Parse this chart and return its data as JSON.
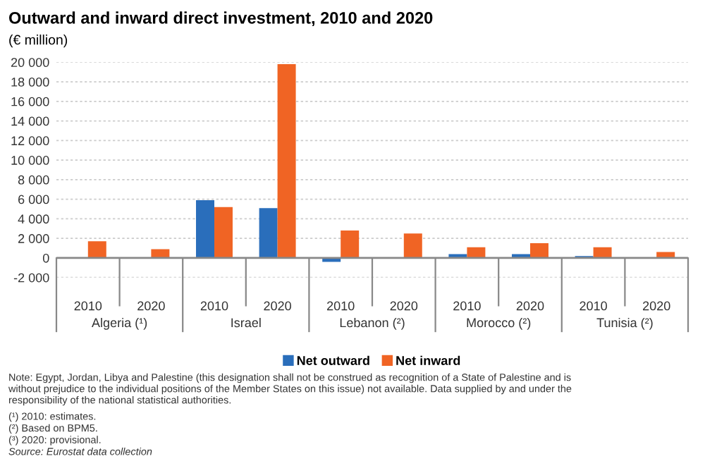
{
  "chart_data": {
    "type": "bar",
    "title": "Outward and inward direct investment, 2010 and 2020",
    "subtitle": "(€ million)",
    "categories": [
      "2010",
      "2020",
      "2010",
      "2020",
      "2010",
      "2020",
      "2010",
      "2020",
      "2010",
      "2020"
    ],
    "series": [
      {
        "name": "Net outward",
        "color": "#2a6ebb",
        "values": [
          50,
          50,
          5900,
          5100,
          -400,
          null,
          400,
          400,
          200,
          50
        ]
      },
      {
        "name": "Net inward",
        "color": "#f06424",
        "values": [
          1700,
          900,
          5200,
          19800,
          2800,
          2500,
          1100,
          1500,
          1100,
          600
        ]
      }
    ],
    "ylim": [
      -2000,
      20000
    ],
    "yticks": [
      {
        "value": -2000,
        "label": "-2 000"
      },
      0,
      {
        "value": 2000,
        "label": "2 000"
      },
      {
        "value": 4000,
        "label": "4 000"
      },
      {
        "value": 6000,
        "label": "6 000"
      },
      {
        "value": 8000,
        "label": "8 000"
      },
      {
        "value": 10000,
        "label": "10 000"
      },
      {
        "value": 12000,
        "label": "12 000"
      },
      {
        "value": 14000,
        "label": "14 000"
      },
      {
        "value": 16000,
        "label": "16 000"
      },
      {
        "value": 18000,
        "label": "18 000"
      },
      {
        "value": 20000,
        "label": "20 000"
      }
    ],
    "grid": "y",
    "legend": "bottom",
    "annotations": [
      "Algeria (¹)",
      "Israel",
      "Lebanon (²)",
      "Morocco (²)",
      "Tunisia (²)",
      "Note: Egypt, Jordan, Libya and Palestine (this designation shall not be construed as recognition of a State of Palestine and is without prejudice to the individual positions of the Member States on this issue) not available. Data supplied by and under the responsibility of the national statistical authorities.",
      "(¹) 2010: estimates.",
      "(²) Based on BPM5.",
      "(³) 2020: provisional.",
      "Source: Eurostat data collection"
    ]
  }
}
